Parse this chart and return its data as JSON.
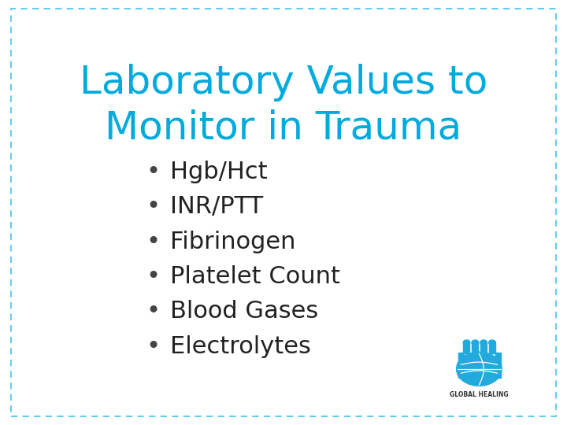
{
  "title_line1": "Laboratory Values to",
  "title_line2": "Monitor in Trauma",
  "title_color": "#00AADD",
  "title_fontsize": 36,
  "bullet_items": [
    "Hgb/Hct",
    "INR/PTT",
    "Fibrinogen",
    "Platelet Count",
    "Blood Gases",
    "Electrolytes"
  ],
  "bullet_color": "#222222",
  "bullet_fontsize": 22,
  "bullet_dot_color": "#444444",
  "background_color": "#FFFFFF",
  "border_color": "#66CCEE",
  "logo_text": "GLOBAL HEALING",
  "logo_text_color": "#333333",
  "logo_hand_color": "#22AADD"
}
